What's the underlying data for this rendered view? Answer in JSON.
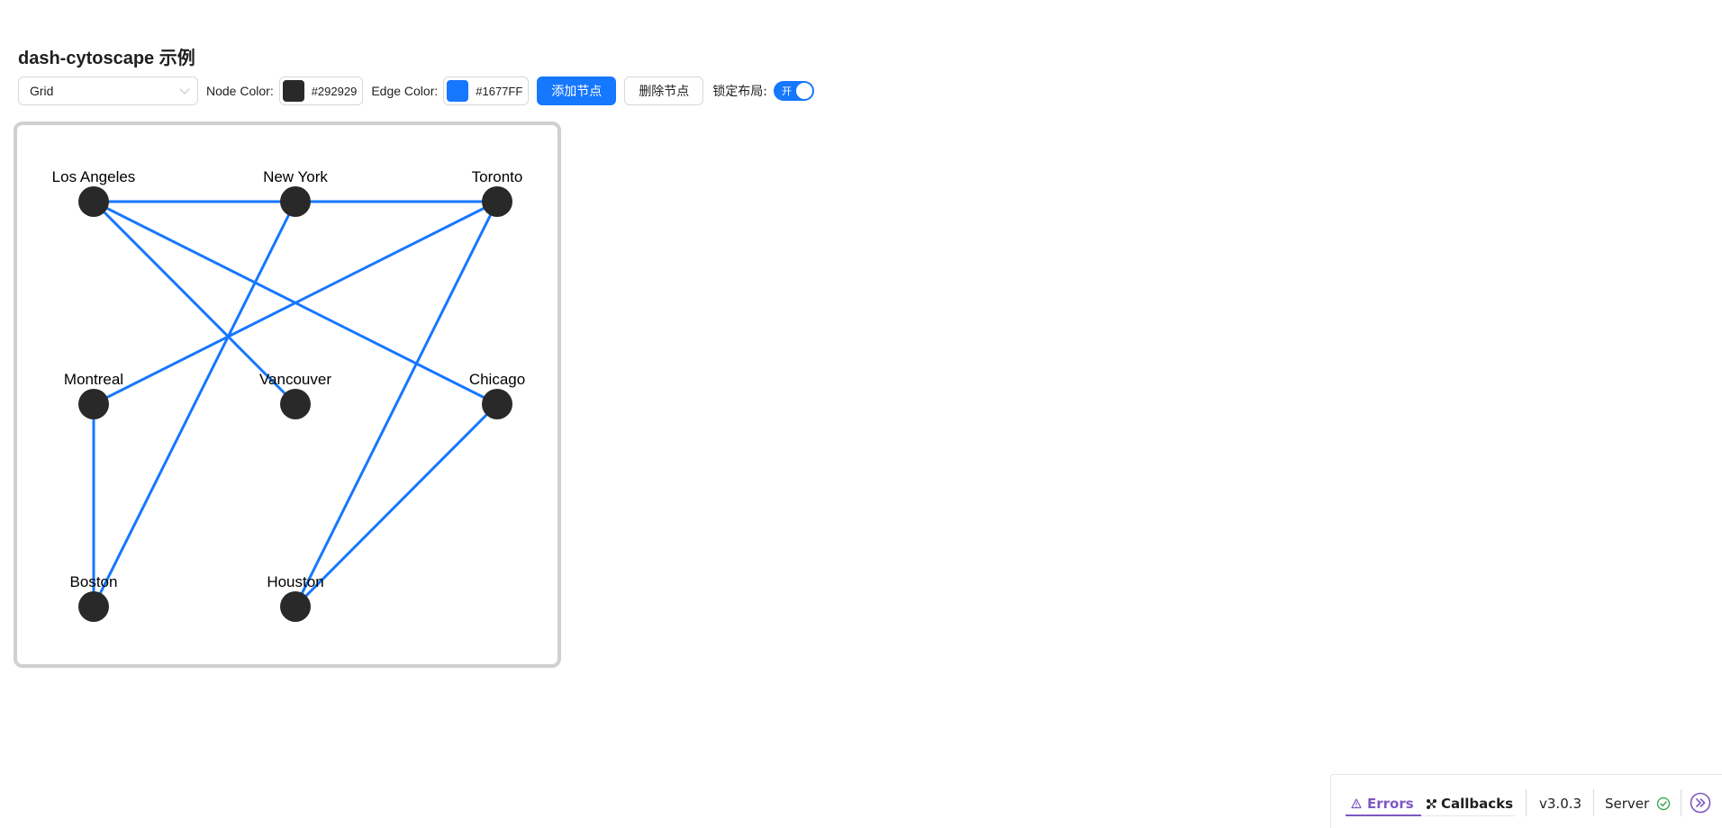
{
  "page_title": "dash-cytoscape 示例",
  "toolbar": {
    "layout_select": {
      "value": "Grid"
    },
    "node_color": {
      "label": "Node Color:",
      "value": "#292929",
      "color": "#292929"
    },
    "edge_color": {
      "label": "Edge Color:",
      "value": "#1677FF",
      "color": "#1677FF"
    },
    "add_node_label": "添加节点",
    "remove_node_label": "删除节点",
    "lock_layout": {
      "label": "锁定布局:",
      "switch_text": "开",
      "checked": true
    }
  },
  "graph": {
    "node_color": "#292929",
    "edge_color": "#1677FF",
    "nodes": [
      {
        "id": "la",
        "label": "Los Angeles",
        "row": 0,
        "col": 0
      },
      {
        "id": "ny",
        "label": "New York",
        "row": 0,
        "col": 1
      },
      {
        "id": "to",
        "label": "Toronto",
        "row": 0,
        "col": 2
      },
      {
        "id": "mtl",
        "label": "Montreal",
        "row": 1,
        "col": 0
      },
      {
        "id": "van",
        "label": "Vancouver",
        "row": 1,
        "col": 1
      },
      {
        "id": "chi",
        "label": "Chicago",
        "row": 1,
        "col": 2
      },
      {
        "id": "bos",
        "label": "Boston",
        "row": 2,
        "col": 0
      },
      {
        "id": "hou",
        "label": "Houston",
        "row": 2,
        "col": 1
      }
    ],
    "edges": [
      {
        "source": "la",
        "target": "ny"
      },
      {
        "source": "ny",
        "target": "to"
      },
      {
        "source": "la",
        "target": "van"
      },
      {
        "source": "la",
        "target": "chi"
      },
      {
        "source": "ny",
        "target": "bos"
      },
      {
        "source": "to",
        "target": "mtl"
      },
      {
        "source": "to",
        "target": "hou"
      },
      {
        "source": "mtl",
        "target": "bos"
      },
      {
        "source": "chi",
        "target": "hou"
      }
    ]
  },
  "devtools": {
    "errors_label": "Errors",
    "callbacks_label": "Callbacks",
    "version": "v3.0.3",
    "server_label": "Server",
    "accent_color": "#7e57c2",
    "server_status_color": "#2e9e48",
    "icons": [
      "warning-icon",
      "callbacks-icon",
      "server-ok-icon",
      "expand-icon"
    ]
  }
}
